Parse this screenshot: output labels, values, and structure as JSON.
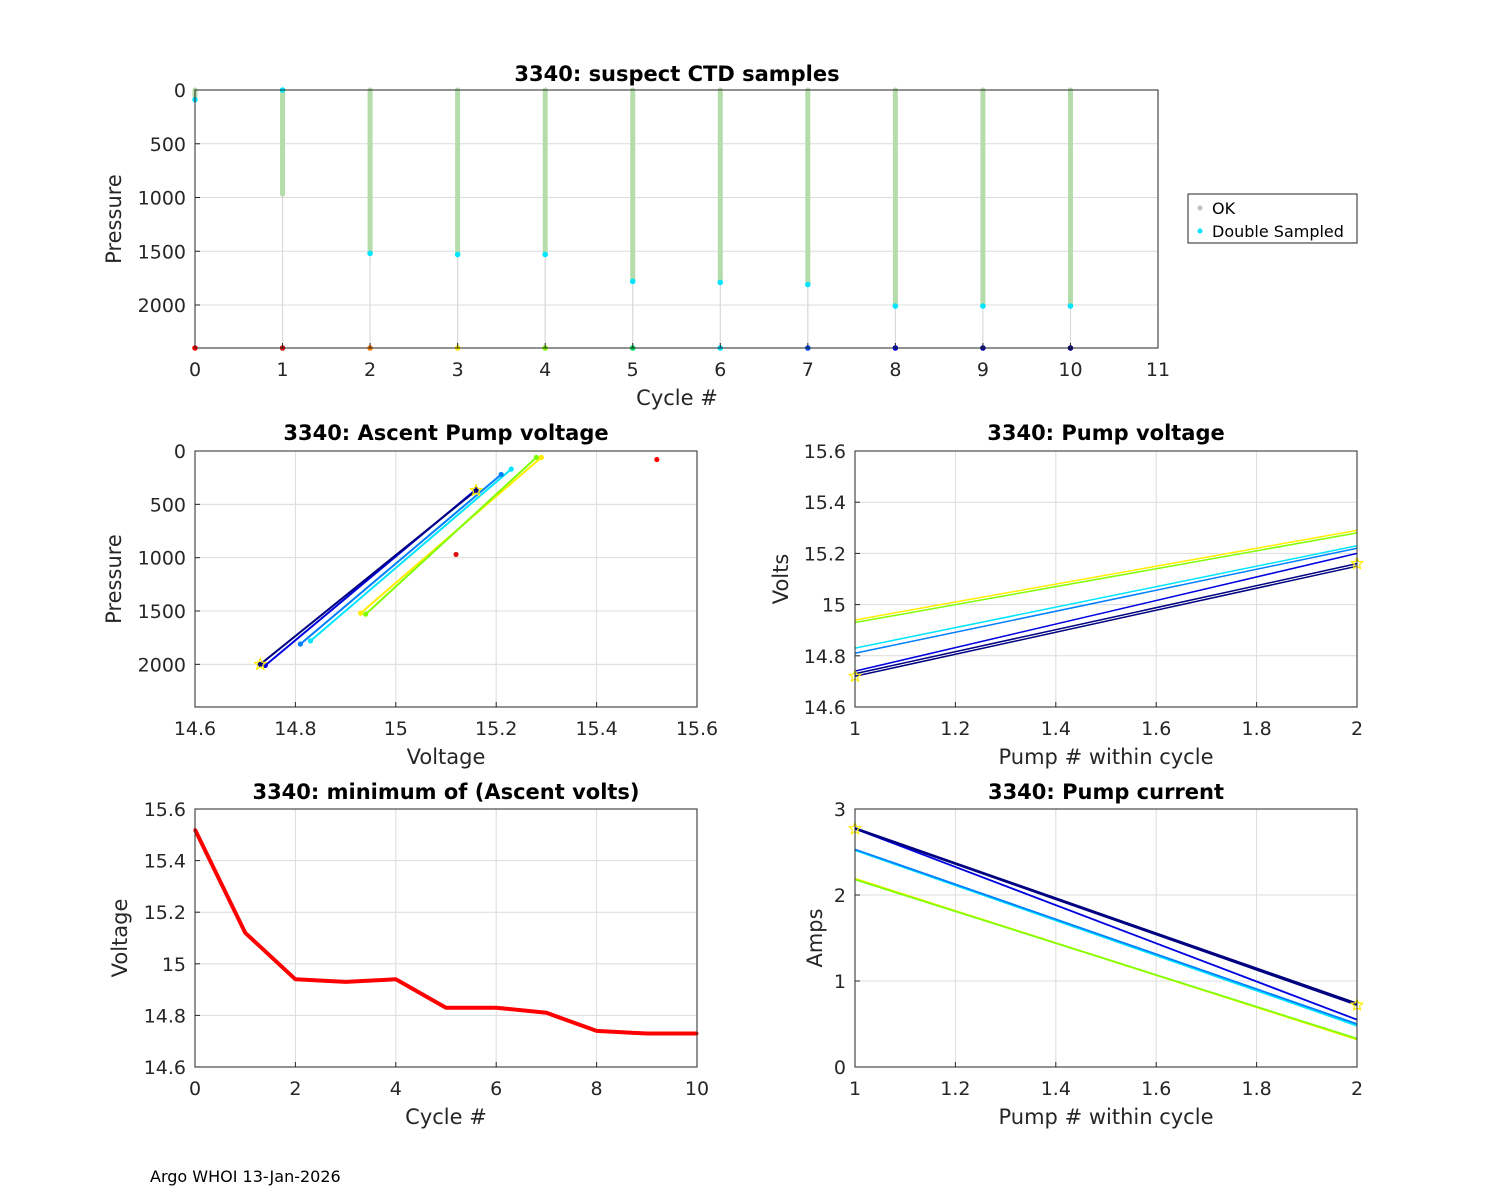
{
  "footer": "Argo WHOI 13-Jan-2026",
  "chart_data": [
    {
      "id": "ctd",
      "type": "scatter",
      "title": "3340: suspect CTD samples",
      "xlabel": "Cycle #",
      "ylabel": "Pressure",
      "xlim": [
        0,
        11
      ],
      "ylim": [
        0,
        2400
      ],
      "y_reversed": true,
      "xticks": [
        "0",
        "1",
        "2",
        "3",
        "4",
        "5",
        "6",
        "7",
        "8",
        "9",
        "10",
        "11"
      ],
      "yticks": [
        "0",
        "500",
        "1000",
        "1500",
        "2000"
      ],
      "legend": [
        "OK",
        "Double Sampled"
      ],
      "legend_colors": [
        "#c0c0c0",
        "#00e5ff"
      ],
      "cycles": [
        0,
        1,
        2,
        3,
        4,
        5,
        6,
        7,
        8,
        9,
        10
      ],
      "max_pressure": [
        60,
        970,
        1520,
        1530,
        1530,
        1780,
        1790,
        1810,
        2010,
        2010,
        2010
      ],
      "double_sampled_pressure": [
        90,
        0,
        1520,
        1530,
        1530,
        1780,
        1790,
        1810,
        2010,
        2010,
        2010
      ],
      "cycle_colors": [
        "#ff0000",
        "#e01010",
        "#ff8000",
        "#ffee00",
        "#80ff00",
        "#00e060",
        "#00e5ff",
        "#0050ff",
        "#0000e0",
        "#0000a0",
        "#000080"
      ]
    },
    {
      "id": "ascent",
      "type": "line",
      "title": "3340: Ascent Pump voltage",
      "xlabel": "Voltage",
      "ylabel": "Pressure",
      "xlim": [
        14.6,
        15.6
      ],
      "ylim": [
        0,
        2400
      ],
      "y_reversed": true,
      "xticks": [
        "14.6",
        "14.8",
        "15",
        "15.2",
        "15.4",
        "15.6"
      ],
      "yticks": [
        "0",
        "500",
        "1000",
        "1500",
        "2000"
      ],
      "series": [
        {
          "color": "#ff0000",
          "x": [
            15.52
          ],
          "y": [
            80
          ]
        },
        {
          "color": "#e01010",
          "x": [
            15.12
          ],
          "y": [
            970
          ]
        },
        {
          "color": "#ffee00",
          "x": [
            14.93,
            15.29
          ],
          "y": [
            1520,
            60
          ]
        },
        {
          "color": "#80ff00",
          "x": [
            14.94,
            15.28
          ],
          "y": [
            1530,
            60
          ]
        },
        {
          "color": "#00e5ff",
          "x": [
            14.83,
            15.23
          ],
          "y": [
            1780,
            170
          ]
        },
        {
          "color": "#0080ff",
          "x": [
            14.81,
            15.21
          ],
          "y": [
            1810,
            220
          ]
        },
        {
          "color": "#0000e0",
          "x": [
            14.74,
            15.16
          ],
          "y": [
            2010,
            360
          ]
        },
        {
          "color": "#000080",
          "x": [
            14.73,
            15.16
          ],
          "y": [
            2000,
            370
          ]
        }
      ]
    },
    {
      "id": "pumpv",
      "type": "line",
      "title": "3340: Pump voltage",
      "xlabel": "Pump # within cycle",
      "ylabel": "Volts",
      "xlim": [
        1,
        2
      ],
      "ylim": [
        14.6,
        15.6
      ],
      "xticks": [
        "1",
        "1.2",
        "1.4",
        "1.6",
        "1.8",
        "2"
      ],
      "yticks": [
        "14.6",
        "14.8",
        "15",
        "15.2",
        "15.4",
        "15.6"
      ],
      "series": [
        {
          "color": "#ffee00",
          "x": [
            1,
            2
          ],
          "y": [
            14.94,
            15.29
          ]
        },
        {
          "color": "#80ff00",
          "x": [
            1,
            2
          ],
          "y": [
            14.93,
            15.28
          ]
        },
        {
          "color": "#00e5ff",
          "x": [
            1,
            2
          ],
          "y": [
            14.83,
            15.23
          ]
        },
        {
          "color": "#0080ff",
          "x": [
            1,
            2
          ],
          "y": [
            14.81,
            15.22
          ]
        },
        {
          "color": "#0000e0",
          "x": [
            1,
            2
          ],
          "y": [
            14.74,
            15.2
          ]
        },
        {
          "color": "#000080",
          "x": [
            1,
            2
          ],
          "y": [
            14.73,
            15.16
          ]
        },
        {
          "color": "#000080",
          "x": [
            1,
            2
          ],
          "y": [
            14.72,
            15.15
          ]
        }
      ]
    },
    {
      "id": "minv",
      "type": "line",
      "title": "3340: minimum of (Ascent volts)",
      "xlabel": "Cycle #",
      "ylabel": "Voltage",
      "xlim": [
        0,
        10
      ],
      "ylim": [
        14.6,
        15.6
      ],
      "xticks": [
        "0",
        "2",
        "4",
        "6",
        "8",
        "10"
      ],
      "yticks": [
        "14.6",
        "14.8",
        "15",
        "15.2",
        "15.4",
        "15.6"
      ],
      "series": [
        {
          "color": "#ff0000",
          "x": [
            0,
            1,
            2,
            3,
            4,
            5,
            6,
            7,
            8,
            9,
            10
          ],
          "y": [
            15.52,
            15.12,
            14.94,
            14.93,
            14.94,
            14.83,
            14.83,
            14.81,
            14.74,
            14.73,
            14.73
          ]
        }
      ]
    },
    {
      "id": "pumpc",
      "type": "line",
      "title": "3340: Pump current",
      "xlabel": "Pump # within cycle",
      "ylabel": "Amps",
      "xlim": [
        1,
        2
      ],
      "ylim": [
        0,
        3
      ],
      "xticks": [
        "1",
        "1.2",
        "1.4",
        "1.6",
        "1.8",
        "2"
      ],
      "yticks": [
        "0",
        "1",
        "2",
        "3"
      ],
      "series": [
        {
          "color": "#ffee00",
          "x": [
            1,
            2
          ],
          "y": [
            2.19,
            0.32
          ]
        },
        {
          "color": "#80ff00",
          "x": [
            1,
            2
          ],
          "y": [
            2.18,
            0.33
          ]
        },
        {
          "color": "#00e5ff",
          "x": [
            1,
            2
          ],
          "y": [
            2.52,
            0.48
          ]
        },
        {
          "color": "#0080ff",
          "x": [
            1,
            2
          ],
          "y": [
            2.53,
            0.5
          ]
        },
        {
          "color": "#0000e0",
          "x": [
            1,
            2
          ],
          "y": [
            2.77,
            0.55
          ]
        },
        {
          "color": "#000080",
          "x": [
            1,
            2
          ],
          "y": [
            2.78,
            0.74
          ]
        },
        {
          "color": "#000080",
          "x": [
            1,
            2
          ],
          "y": [
            2.77,
            0.72
          ]
        }
      ]
    }
  ]
}
